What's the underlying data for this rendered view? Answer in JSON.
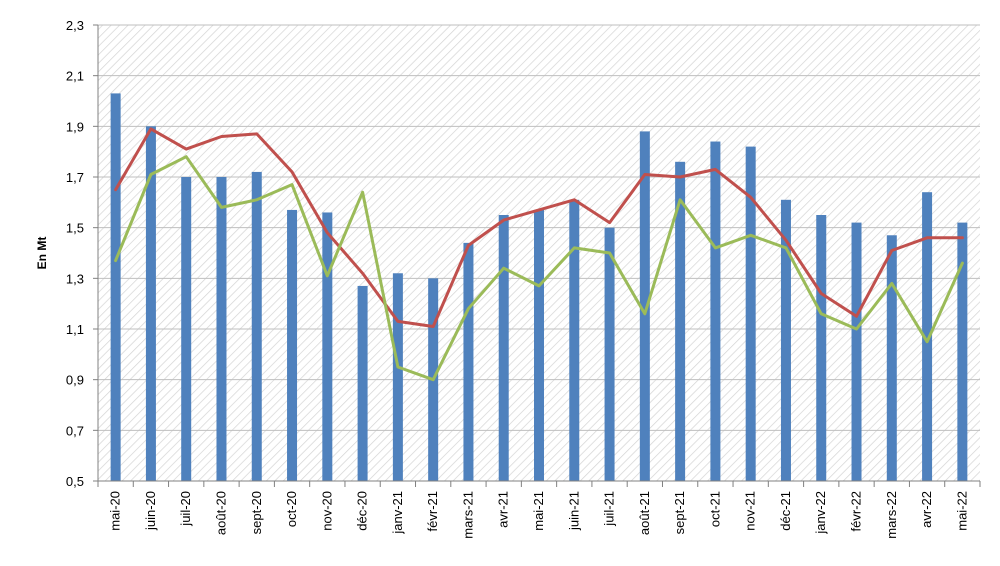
{
  "chart_data": {
    "type": "bar",
    "title": "",
    "ylabel": "En Mt",
    "xlabel": "",
    "ylim": [
      0.5,
      2.3
    ],
    "yticks": [
      "0,5",
      "0,7",
      "0,9",
      "1,1",
      "1,3",
      "1,5",
      "1,7",
      "1,9",
      "2,1",
      "2,3"
    ],
    "ytick_values": [
      0.5,
      0.7,
      0.9,
      1.1,
      1.3,
      1.5,
      1.7,
      1.9,
      2.1,
      2.3
    ],
    "grid": true,
    "legend": "none",
    "categories": [
      "mai-20",
      "juin-20",
      "juil-20",
      "août-20",
      "sept-20",
      "oct-20",
      "nov-20",
      "déc-20",
      "janv-21",
      "févr-21",
      "mars-21",
      "avr-21",
      "mai-21",
      "juin-21",
      "juil-21",
      "août-21",
      "sept-21",
      "oct-21",
      "nov-21",
      "déc-21",
      "janv-22",
      "févr-22",
      "mars-22",
      "avr-22",
      "mai-22"
    ],
    "series": [
      {
        "kind": "bar",
        "color": "#4f81bd",
        "values": [
          2.03,
          1.9,
          1.7,
          1.7,
          1.72,
          1.57,
          1.56,
          1.27,
          1.32,
          1.3,
          1.44,
          1.55,
          1.57,
          1.61,
          1.5,
          1.88,
          1.76,
          1.84,
          1.82,
          1.61,
          1.55,
          1.52,
          1.47,
          1.64,
          1.52
        ]
      },
      {
        "kind": "line",
        "color": "#c0504d",
        "values": [
          1.65,
          1.89,
          1.81,
          1.86,
          1.87,
          1.72,
          1.48,
          1.32,
          1.13,
          1.11,
          1.43,
          1.53,
          1.57,
          1.61,
          1.52,
          1.71,
          1.7,
          1.73,
          1.62,
          1.45,
          1.24,
          1.15,
          1.41,
          1.46,
          1.46
        ]
      },
      {
        "kind": "line",
        "color": "#9bbb59",
        "values": [
          1.37,
          1.71,
          1.78,
          1.58,
          1.61,
          1.67,
          1.31,
          1.64,
          0.95,
          0.9,
          1.18,
          1.34,
          1.27,
          1.42,
          1.4,
          1.16,
          1.61,
          1.42,
          1.47,
          1.42,
          1.16,
          1.1,
          1.28,
          1.05,
          1.36
        ]
      }
    ]
  }
}
